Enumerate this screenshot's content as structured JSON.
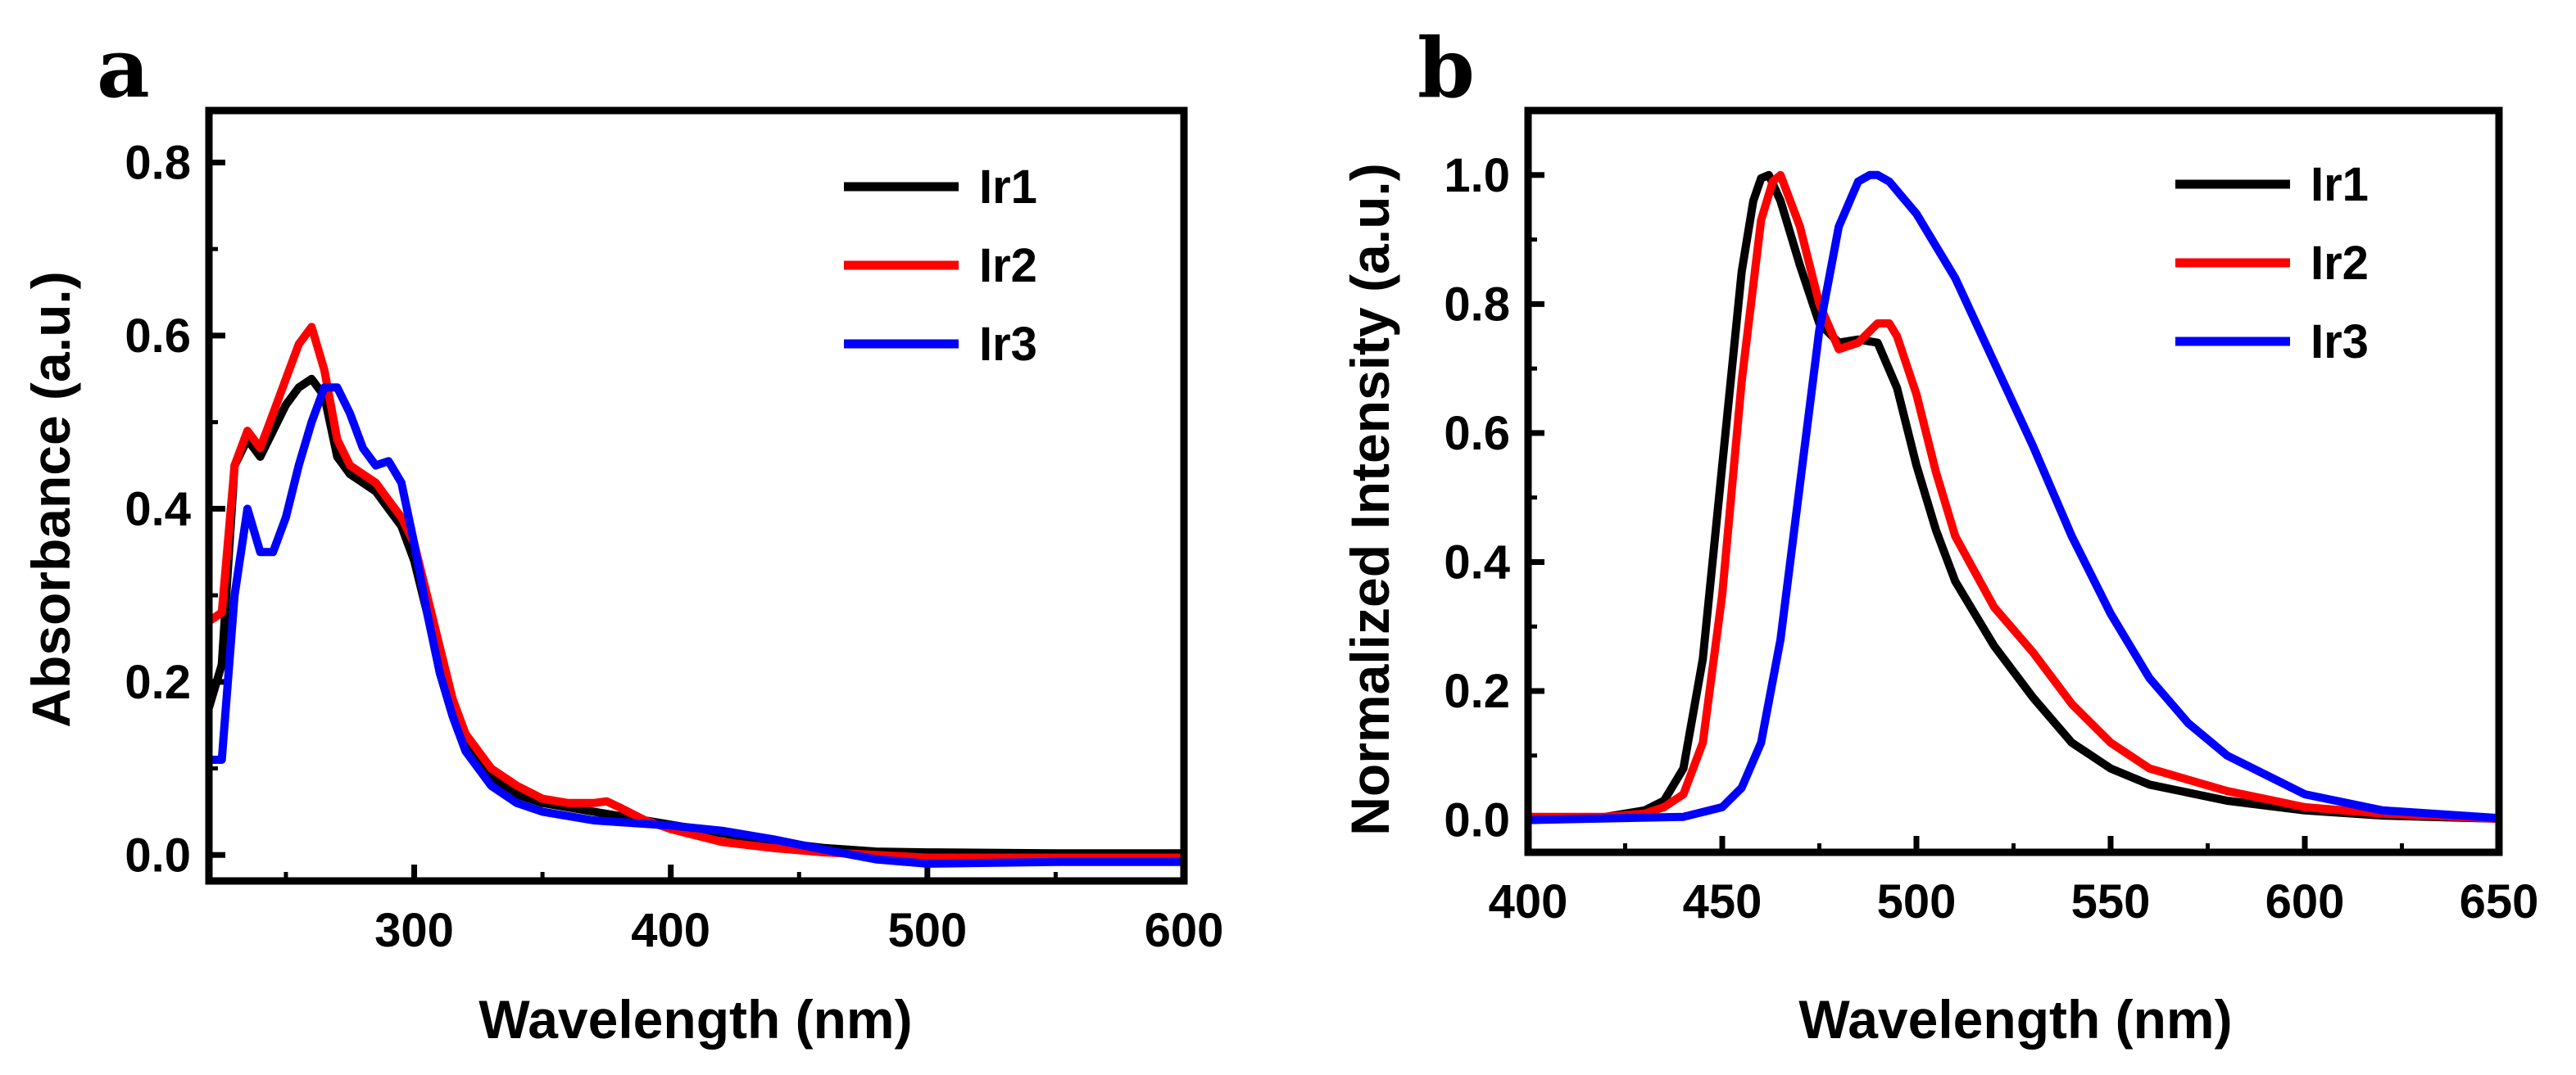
{
  "chart_data": [
    {
      "panel": "a",
      "type": "line",
      "title": "",
      "xlabel": "Wavelength (nm)",
      "ylabel": "Absorbance (a.u.)",
      "xlim": [
        220,
        600
      ],
      "ylim": [
        -0.03,
        0.86
      ],
      "xticks": [
        300,
        400,
        500,
        600
      ],
      "xtick_labels": [
        "300",
        "400",
        "500",
        "600"
      ],
      "yticks": [
        0.0,
        0.2,
        0.4,
        0.6,
        0.8
      ],
      "ytick_labels": [
        "0.0",
        "0.2",
        "0.4",
        "0.6",
        "0.8"
      ],
      "legend_position": "top-right",
      "series": [
        {
          "name": "Ir1",
          "color": "#000000",
          "x": [
            220,
            225,
            230,
            235,
            240,
            245,
            250,
            255,
            260,
            265,
            270,
            275,
            280,
            285,
            290,
            295,
            300,
            305,
            310,
            315,
            320,
            330,
            340,
            350,
            360,
            370,
            380,
            390,
            400,
            420,
            440,
            460,
            480,
            500,
            550,
            600
          ],
          "y": [
            0.17,
            0.22,
            0.45,
            0.48,
            0.46,
            0.49,
            0.52,
            0.54,
            0.55,
            0.53,
            0.46,
            0.44,
            0.43,
            0.42,
            0.4,
            0.38,
            0.34,
            0.28,
            0.22,
            0.17,
            0.13,
            0.09,
            0.07,
            0.06,
            0.055,
            0.05,
            0.045,
            0.04,
            0.035,
            0.025,
            0.015,
            0.008,
            0.004,
            0.003,
            0.002,
            0.002
          ]
        },
        {
          "name": "Ir2",
          "color": "#ff0000",
          "x": [
            220,
            225,
            230,
            235,
            240,
            245,
            250,
            255,
            260,
            265,
            270,
            275,
            280,
            285,
            290,
            295,
            300,
            305,
            310,
            315,
            320,
            330,
            340,
            350,
            360,
            370,
            375,
            380,
            390,
            400,
            420,
            440,
            460,
            480,
            500,
            550,
            600
          ],
          "y": [
            0.27,
            0.28,
            0.45,
            0.49,
            0.47,
            0.51,
            0.55,
            0.59,
            0.61,
            0.56,
            0.48,
            0.45,
            0.44,
            0.43,
            0.41,
            0.39,
            0.36,
            0.3,
            0.24,
            0.18,
            0.14,
            0.1,
            0.08,
            0.065,
            0.06,
            0.06,
            0.062,
            0.055,
            0.04,
            0.03,
            0.015,
            0.008,
            0.003,
            0.0,
            -0.003,
            -0.003,
            -0.003
          ]
        },
        {
          "name": "Ir3",
          "color": "#0000ff",
          "x": [
            220,
            225,
            230,
            235,
            240,
            245,
            250,
            255,
            260,
            265,
            270,
            275,
            280,
            285,
            290,
            295,
            300,
            305,
            310,
            315,
            320,
            330,
            340,
            350,
            360,
            370,
            380,
            390,
            400,
            420,
            440,
            460,
            480,
            500,
            550,
            600
          ],
          "y": [
            0.11,
            0.11,
            0.3,
            0.4,
            0.35,
            0.35,
            0.39,
            0.45,
            0.5,
            0.54,
            0.54,
            0.51,
            0.47,
            0.45,
            0.455,
            0.43,
            0.36,
            0.28,
            0.21,
            0.16,
            0.12,
            0.08,
            0.06,
            0.05,
            0.045,
            0.04,
            0.038,
            0.036,
            0.034,
            0.028,
            0.018,
            0.006,
            -0.005,
            -0.01,
            -0.008,
            -0.008
          ]
        }
      ]
    },
    {
      "panel": "b",
      "type": "line",
      "title": "",
      "xlabel": "Wavelength (nm)",
      "ylabel": "Normalized Intensity (a.u.)",
      "xlim": [
        400,
        650
      ],
      "ylim": [
        -0.05,
        1.1
      ],
      "xticks": [
        400,
        450,
        500,
        550,
        600,
        650
      ],
      "xtick_labels": [
        "400",
        "450",
        "500",
        "550",
        "600",
        "650"
      ],
      "yticks": [
        0.0,
        0.2,
        0.4,
        0.6,
        0.8,
        1.0
      ],
      "ytick_labels": [
        "0.0",
        "0.2",
        "0.4",
        "0.6",
        "0.8",
        "1.0"
      ],
      "legend_position": "top-right",
      "series": [
        {
          "name": "Ir1",
          "color": "#000000",
          "x": [
            400,
            420,
            430,
            435,
            440,
            445,
            450,
            455,
            458,
            460,
            462,
            465,
            470,
            475,
            480,
            485,
            490,
            495,
            500,
            505,
            510,
            520,
            530,
            540,
            550,
            560,
            580,
            600,
            620,
            650
          ],
          "y": [
            0.0,
            0.005,
            0.015,
            0.03,
            0.08,
            0.25,
            0.55,
            0.85,
            0.96,
            0.995,
            1.0,
            0.96,
            0.86,
            0.77,
            0.74,
            0.745,
            0.74,
            0.67,
            0.55,
            0.45,
            0.37,
            0.27,
            0.19,
            0.12,
            0.08,
            0.055,
            0.03,
            0.015,
            0.007,
            0.002
          ]
        },
        {
          "name": "Ir2",
          "color": "#ff0000",
          "x": [
            400,
            420,
            430,
            435,
            440,
            445,
            450,
            455,
            460,
            463,
            465,
            470,
            475,
            480,
            485,
            490,
            493,
            495,
            500,
            505,
            510,
            520,
            530,
            540,
            550,
            560,
            580,
            600,
            620,
            650
          ],
          "y": [
            0.005,
            0.005,
            0.01,
            0.02,
            0.04,
            0.12,
            0.35,
            0.68,
            0.93,
            0.99,
            1.0,
            0.92,
            0.8,
            0.73,
            0.74,
            0.77,
            0.77,
            0.75,
            0.66,
            0.54,
            0.44,
            0.33,
            0.26,
            0.18,
            0.12,
            0.08,
            0.045,
            0.02,
            0.01,
            0.002
          ]
        },
        {
          "name": "Ir3",
          "color": "#0000ff",
          "x": [
            400,
            440,
            450,
            455,
            460,
            465,
            470,
            475,
            480,
            485,
            488,
            490,
            493,
            500,
            510,
            520,
            530,
            540,
            550,
            560,
            570,
            580,
            600,
            620,
            650
          ],
          "y": [
            0.0,
            0.005,
            0.02,
            0.05,
            0.12,
            0.28,
            0.52,
            0.76,
            0.92,
            0.99,
            1.0,
            1.0,
            0.99,
            0.94,
            0.84,
            0.71,
            0.58,
            0.44,
            0.32,
            0.22,
            0.15,
            0.1,
            0.04,
            0.015,
            0.003
          ]
        }
      ]
    }
  ]
}
